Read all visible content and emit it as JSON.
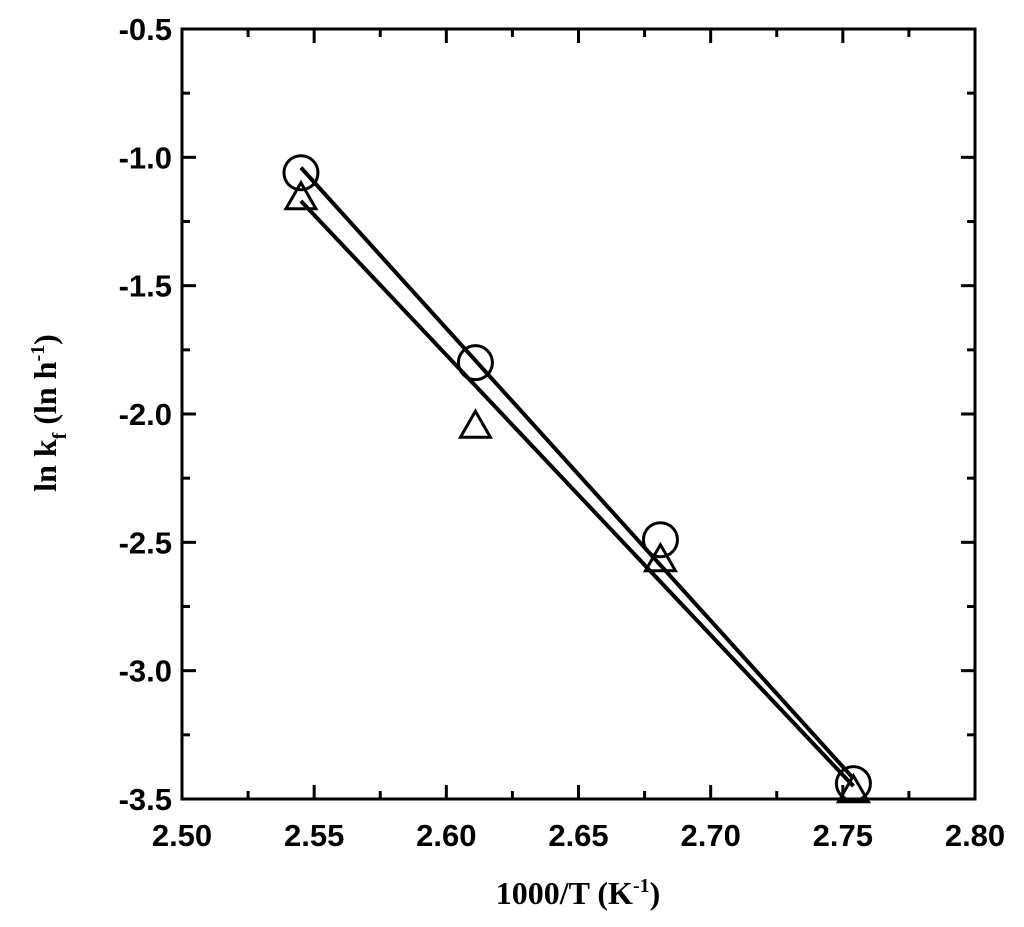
{
  "chart_data": {
    "type": "scatter",
    "xlabel": {
      "main": "1000/T (K",
      "sup": "-1",
      "close": ")"
    },
    "ylabel": {
      "pre": "ln k",
      "sub": "f",
      "mid": " (ln h",
      "sup": "-1",
      "close": ")"
    },
    "xlim": [
      2.5,
      2.8
    ],
    "ylim": [
      -3.5,
      -0.5
    ],
    "x_ticks": [
      {
        "value": 2.5,
        "label": "2.50"
      },
      {
        "value": 2.55,
        "label": "2.55"
      },
      {
        "value": 2.6,
        "label": "2.60"
      },
      {
        "value": 2.65,
        "label": "2.65"
      },
      {
        "value": 2.7,
        "label": "2.70"
      },
      {
        "value": 2.75,
        "label": "2.75"
      },
      {
        "value": 2.8,
        "label": "2.80"
      }
    ],
    "y_ticks": [
      {
        "value": -0.5,
        "label": "-0.5"
      },
      {
        "value": -1.0,
        "label": "-1.0"
      },
      {
        "value": -1.5,
        "label": "-1.5"
      },
      {
        "value": -2.0,
        "label": "-2.0"
      },
      {
        "value": -2.5,
        "label": "-2.5"
      },
      {
        "value": -3.0,
        "label": "-3.0"
      },
      {
        "value": -3.5,
        "label": "-3.5"
      }
    ],
    "grid": false,
    "series": [
      {
        "marker": "circle",
        "x": [
          2.545,
          2.611,
          2.681,
          2.754
        ],
        "y": [
          -1.06,
          -1.8,
          -2.49,
          -3.44
        ],
        "fit": {
          "x": [
            2.545,
            2.754
          ],
          "y": [
            -1.04,
            -3.42
          ]
        }
      },
      {
        "marker": "triangle",
        "x": [
          2.545,
          2.611,
          2.681,
          2.754
        ],
        "y": [
          -1.16,
          -2.05,
          -2.57,
          -3.47
        ],
        "fit": {
          "x": [
            2.545,
            2.754
          ],
          "y": [
            -1.17,
            -3.45
          ]
        }
      }
    ]
  }
}
